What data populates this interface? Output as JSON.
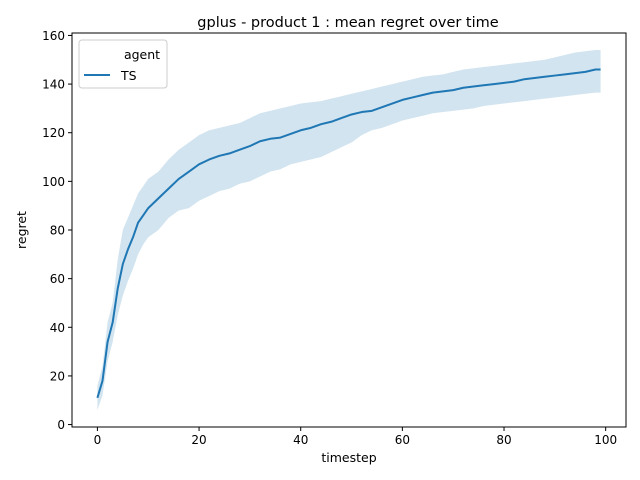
{
  "chart_data": {
    "type": "line",
    "title": "gplus - product 1 : mean regret over time",
    "xlabel": "timestep",
    "ylabel": "regret",
    "xlim": [
      -5,
      104
    ],
    "ylim": [
      -1,
      161
    ],
    "xticks": [
      0,
      20,
      40,
      60,
      80,
      100
    ],
    "yticks": [
      0,
      20,
      40,
      60,
      80,
      100,
      120,
      140,
      160
    ],
    "grid": false,
    "legend": {
      "title": "agent",
      "placement": "top-left"
    },
    "series": [
      {
        "name": "TS",
        "color": "#1f77b4",
        "band_color": "#1f77b4",
        "x": [
          0,
          1,
          2,
          3,
          4,
          5,
          6,
          7,
          8,
          9,
          10,
          12,
          14,
          16,
          18,
          20,
          22,
          24,
          26,
          28,
          30,
          32,
          34,
          36,
          38,
          40,
          42,
          44,
          46,
          48,
          50,
          52,
          54,
          56,
          58,
          60,
          62,
          64,
          66,
          68,
          70,
          72,
          74,
          76,
          78,
          80,
          82,
          84,
          86,
          88,
          90,
          92,
          94,
          96,
          98,
          99
        ],
        "y": [
          11,
          18,
          34,
          42,
          56,
          66,
          72,
          77,
          83,
          86,
          89,
          93,
          97,
          101,
          104,
          107,
          109,
          110.5,
          111.5,
          113,
          114.5,
          116.5,
          117.5,
          118,
          119.5,
          121,
          122,
          123.5,
          124.5,
          126,
          127.5,
          128.5,
          129,
          130.5,
          132,
          133.5,
          134.5,
          135.5,
          136.5,
          137,
          137.5,
          138.5,
          139,
          139.5,
          140,
          140.5,
          141,
          142,
          142.5,
          143,
          143.5,
          144,
          144.5,
          145,
          146,
          146
        ],
        "lower": [
          6,
          12,
          26,
          34,
          45,
          53,
          59,
          64,
          70,
          74,
          77,
          80,
          85,
          88,
          89,
          92,
          94,
          96,
          97,
          99,
          100,
          102,
          104,
          105,
          107,
          108,
          109,
          110,
          112,
          114,
          116,
          119,
          121,
          122,
          123.5,
          125,
          126,
          127,
          128,
          128.5,
          129,
          129.5,
          130,
          131,
          131.5,
          132,
          132.5,
          133,
          133.5,
          134,
          134.5,
          135,
          135.5,
          136,
          136.5,
          136.5
        ],
        "upper": [
          16,
          24,
          42,
          50,
          68,
          80,
          85,
          90,
          95,
          98,
          101,
          104,
          109,
          113,
          116,
          119,
          121,
          122,
          123,
          124,
          126,
          128,
          129,
          130,
          131,
          132,
          132.5,
          133,
          134,
          135,
          136,
          137,
          138,
          139,
          140,
          141,
          142,
          143,
          143.5,
          144,
          145,
          146,
          146.5,
          147,
          147.5,
          148,
          148.5,
          149,
          149.5,
          150,
          151,
          152,
          153,
          153.5,
          154,
          154
        ]
      }
    ]
  }
}
